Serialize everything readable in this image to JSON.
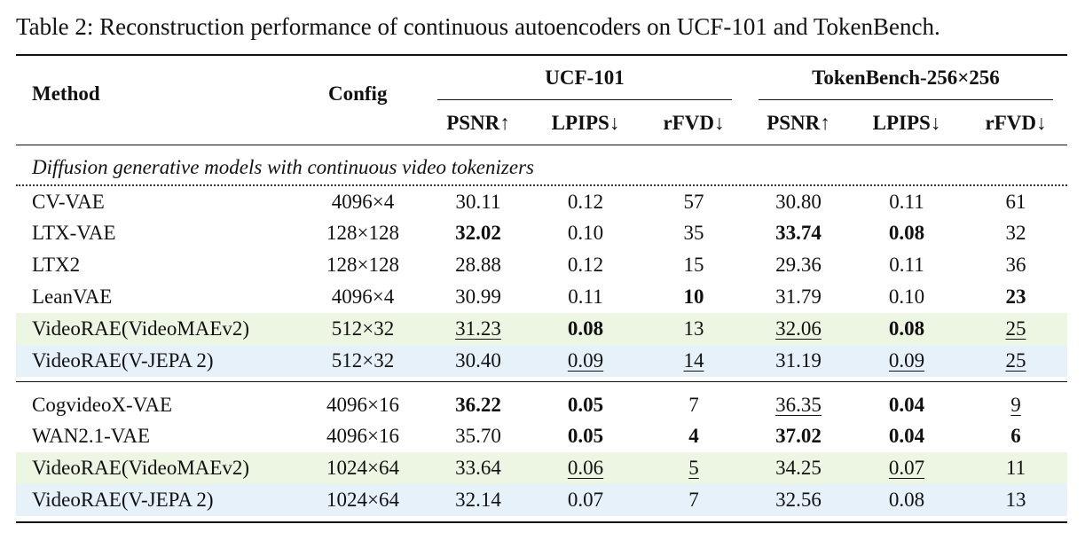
{
  "caption": "Table 2: Reconstruction performance of continuous autoencoders on UCF-101 and TokenBench.",
  "header": {
    "method": "Method",
    "config": "Config",
    "group_ucf": "UCF-101",
    "group_tokenbench": "TokenBench-256×256",
    "psnr": "PSNR↑",
    "lpips": "LPIPS↓",
    "rfvd": "rFVD↓"
  },
  "section_label": "Diffusion generative models with continuous video tokenizers",
  "colors": {
    "videomae_row": "#edf5e3",
    "vjepa_row": "#e7f1fa"
  },
  "rows": [
    {
      "method": "CV-VAE",
      "config": "4096×4",
      "ucf_psnr": "30.11",
      "ucf_lpips": "0.12",
      "ucf_rfvd": "57",
      "tb_psnr": "30.80",
      "tb_lpips": "0.11",
      "tb_rfvd": "61"
    },
    {
      "method": "LTX-VAE",
      "config": "128×128",
      "ucf_psnr": "32.02",
      "ucf_lpips": "0.10",
      "ucf_rfvd": "35",
      "tb_psnr": "33.74",
      "tb_lpips": "0.08",
      "tb_rfvd": "32"
    },
    {
      "method": "LTX2",
      "config": "128×128",
      "ucf_psnr": "28.88",
      "ucf_lpips": "0.12",
      "ucf_rfvd": "15",
      "tb_psnr": "29.36",
      "tb_lpips": "0.11",
      "tb_rfvd": "36"
    },
    {
      "method": "LeanVAE",
      "config": "4096×4",
      "ucf_psnr": "30.99",
      "ucf_lpips": "0.11",
      "ucf_rfvd": "10",
      "tb_psnr": "31.79",
      "tb_lpips": "0.10",
      "tb_rfvd": "23"
    },
    {
      "method": "VideoRAE(VideoMAEv2)",
      "config": "512×32",
      "ucf_psnr": "31.23",
      "ucf_lpips": "0.08",
      "ucf_rfvd": "13",
      "tb_psnr": "32.06",
      "tb_lpips": "0.08",
      "tb_rfvd": "25"
    },
    {
      "method": "VideoRAE(V-JEPA 2)",
      "config": "512×32",
      "ucf_psnr": "30.40",
      "ucf_lpips": "0.09",
      "ucf_rfvd": "14",
      "tb_psnr": "31.19",
      "tb_lpips": "0.09",
      "tb_rfvd": "25"
    },
    {
      "method": "CogvideoX-VAE",
      "config": "4096×16",
      "ucf_psnr": "36.22",
      "ucf_lpips": "0.05",
      "ucf_rfvd": "7",
      "tb_psnr": "36.35",
      "tb_lpips": "0.04",
      "tb_rfvd": "9"
    },
    {
      "method": "WAN2.1-VAE",
      "config": "4096×16",
      "ucf_psnr": "35.70",
      "ucf_lpips": "0.05",
      "ucf_rfvd": "4",
      "tb_psnr": "37.02",
      "tb_lpips": "0.04",
      "tb_rfvd": "6"
    },
    {
      "method": "VideoRAE(VideoMAEv2)",
      "config": "1024×64",
      "ucf_psnr": "33.64",
      "ucf_lpips": "0.06",
      "ucf_rfvd": "5",
      "tb_psnr": "34.25",
      "tb_lpips": "0.07",
      "tb_rfvd": "11"
    },
    {
      "method": "VideoRAE(V-JEPA 2)",
      "config": "1024×64",
      "ucf_psnr": "32.14",
      "ucf_lpips": "0.07",
      "ucf_rfvd": "7",
      "tb_psnr": "32.56",
      "tb_lpips": "0.08",
      "tb_rfvd": "13"
    }
  ]
}
